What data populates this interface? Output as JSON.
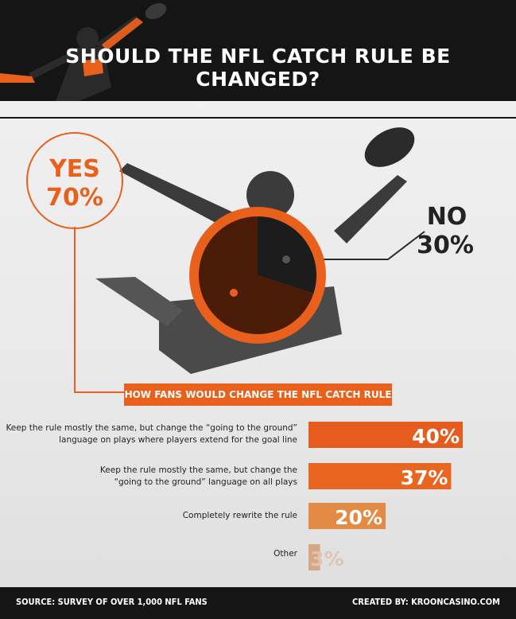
{
  "title": "SHOULD THE NFL CATCH RULE BE CHANGED?",
  "colors": {
    "dark": "#151515",
    "orange": "#e8601c",
    "pie_yes": "#4a1c08",
    "pie_no": "#1c1c1c"
  },
  "chart_data": [
    {
      "type": "pie",
      "title": "",
      "slices": [
        {
          "label": "YES",
          "value": 70,
          "display": "70%"
        },
        {
          "label": "NO",
          "value": 30,
          "display": "30%"
        }
      ]
    },
    {
      "type": "bar",
      "title": "HOW FANS WOULD CHANGE THE NFL CATCH RULE",
      "orientation": "horizontal",
      "categories": [
        "Keep the rule mostly the same, but change the “going to the ground” language on plays where players extend for the goal line",
        "Keep the rule mostly the same, but change the “going to the ground” language on all plays",
        "Completely rewrite the rule",
        "Other"
      ],
      "values": [
        40,
        37,
        20,
        3
      ],
      "display": [
        "40%",
        "37%",
        "20%",
        "3%"
      ],
      "bar_colors": [
        "#e65c1e",
        "#e8661f",
        "#e38a45",
        "#d7a686"
      ]
    }
  ],
  "bar_labels": [
    [
      "Keep the rule mostly the same, but change the “going to the ground”",
      "language on plays where players extend for the goal line"
    ],
    [
      "Keep the rule mostly the same, but change the",
      "“going to the ground” language on all plays"
    ],
    [
      "Completely rewrite the rule"
    ],
    [
      "Other"
    ]
  ],
  "footer": {
    "source": "SOURCE: SURVEY OF OVER 1,000 NFL FANS",
    "credit": "CREATED BY: KROONCASINO.COM"
  }
}
